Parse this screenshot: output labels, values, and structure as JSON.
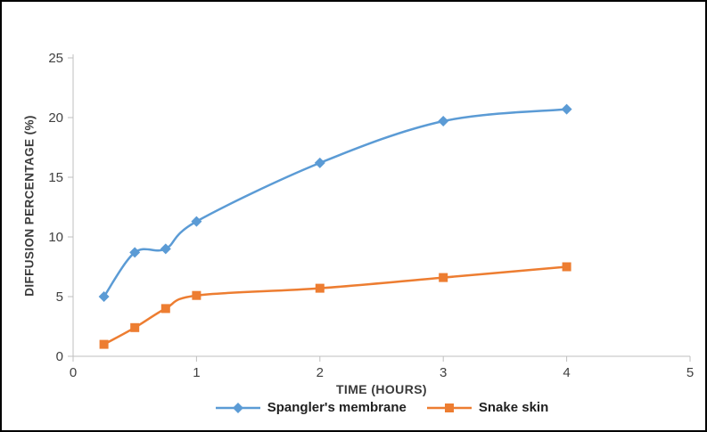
{
  "chart_data": {
    "type": "line",
    "title": "",
    "xlabel": "TIME (HOURS)",
    "ylabel": "DIFFUSION PERCENTAGE (%)",
    "xlim": [
      0,
      5
    ],
    "ylim": [
      0,
      25
    ],
    "x_ticks": [
      0,
      1,
      2,
      3,
      4,
      5
    ],
    "y_ticks": [
      0,
      5,
      10,
      15,
      20,
      25
    ],
    "grid": false,
    "legend_position": "bottom",
    "axis_color": "#bfbfbf",
    "tick_label_color": "#404040",
    "x": [
      0.25,
      0.5,
      0.75,
      1,
      2,
      3,
      4
    ],
    "series": [
      {
        "name": "Spangler's membrane",
        "color": "#5b9bd5",
        "marker": "diamond",
        "values": [
          5,
          8.7,
          9,
          11.3,
          16.2,
          19.7,
          20.7
        ]
      },
      {
        "name": "Snake skin",
        "color": "#ed7d31",
        "marker": "square",
        "values": [
          1,
          2.4,
          4,
          5.1,
          5.7,
          6.6,
          7.5
        ]
      }
    ]
  }
}
